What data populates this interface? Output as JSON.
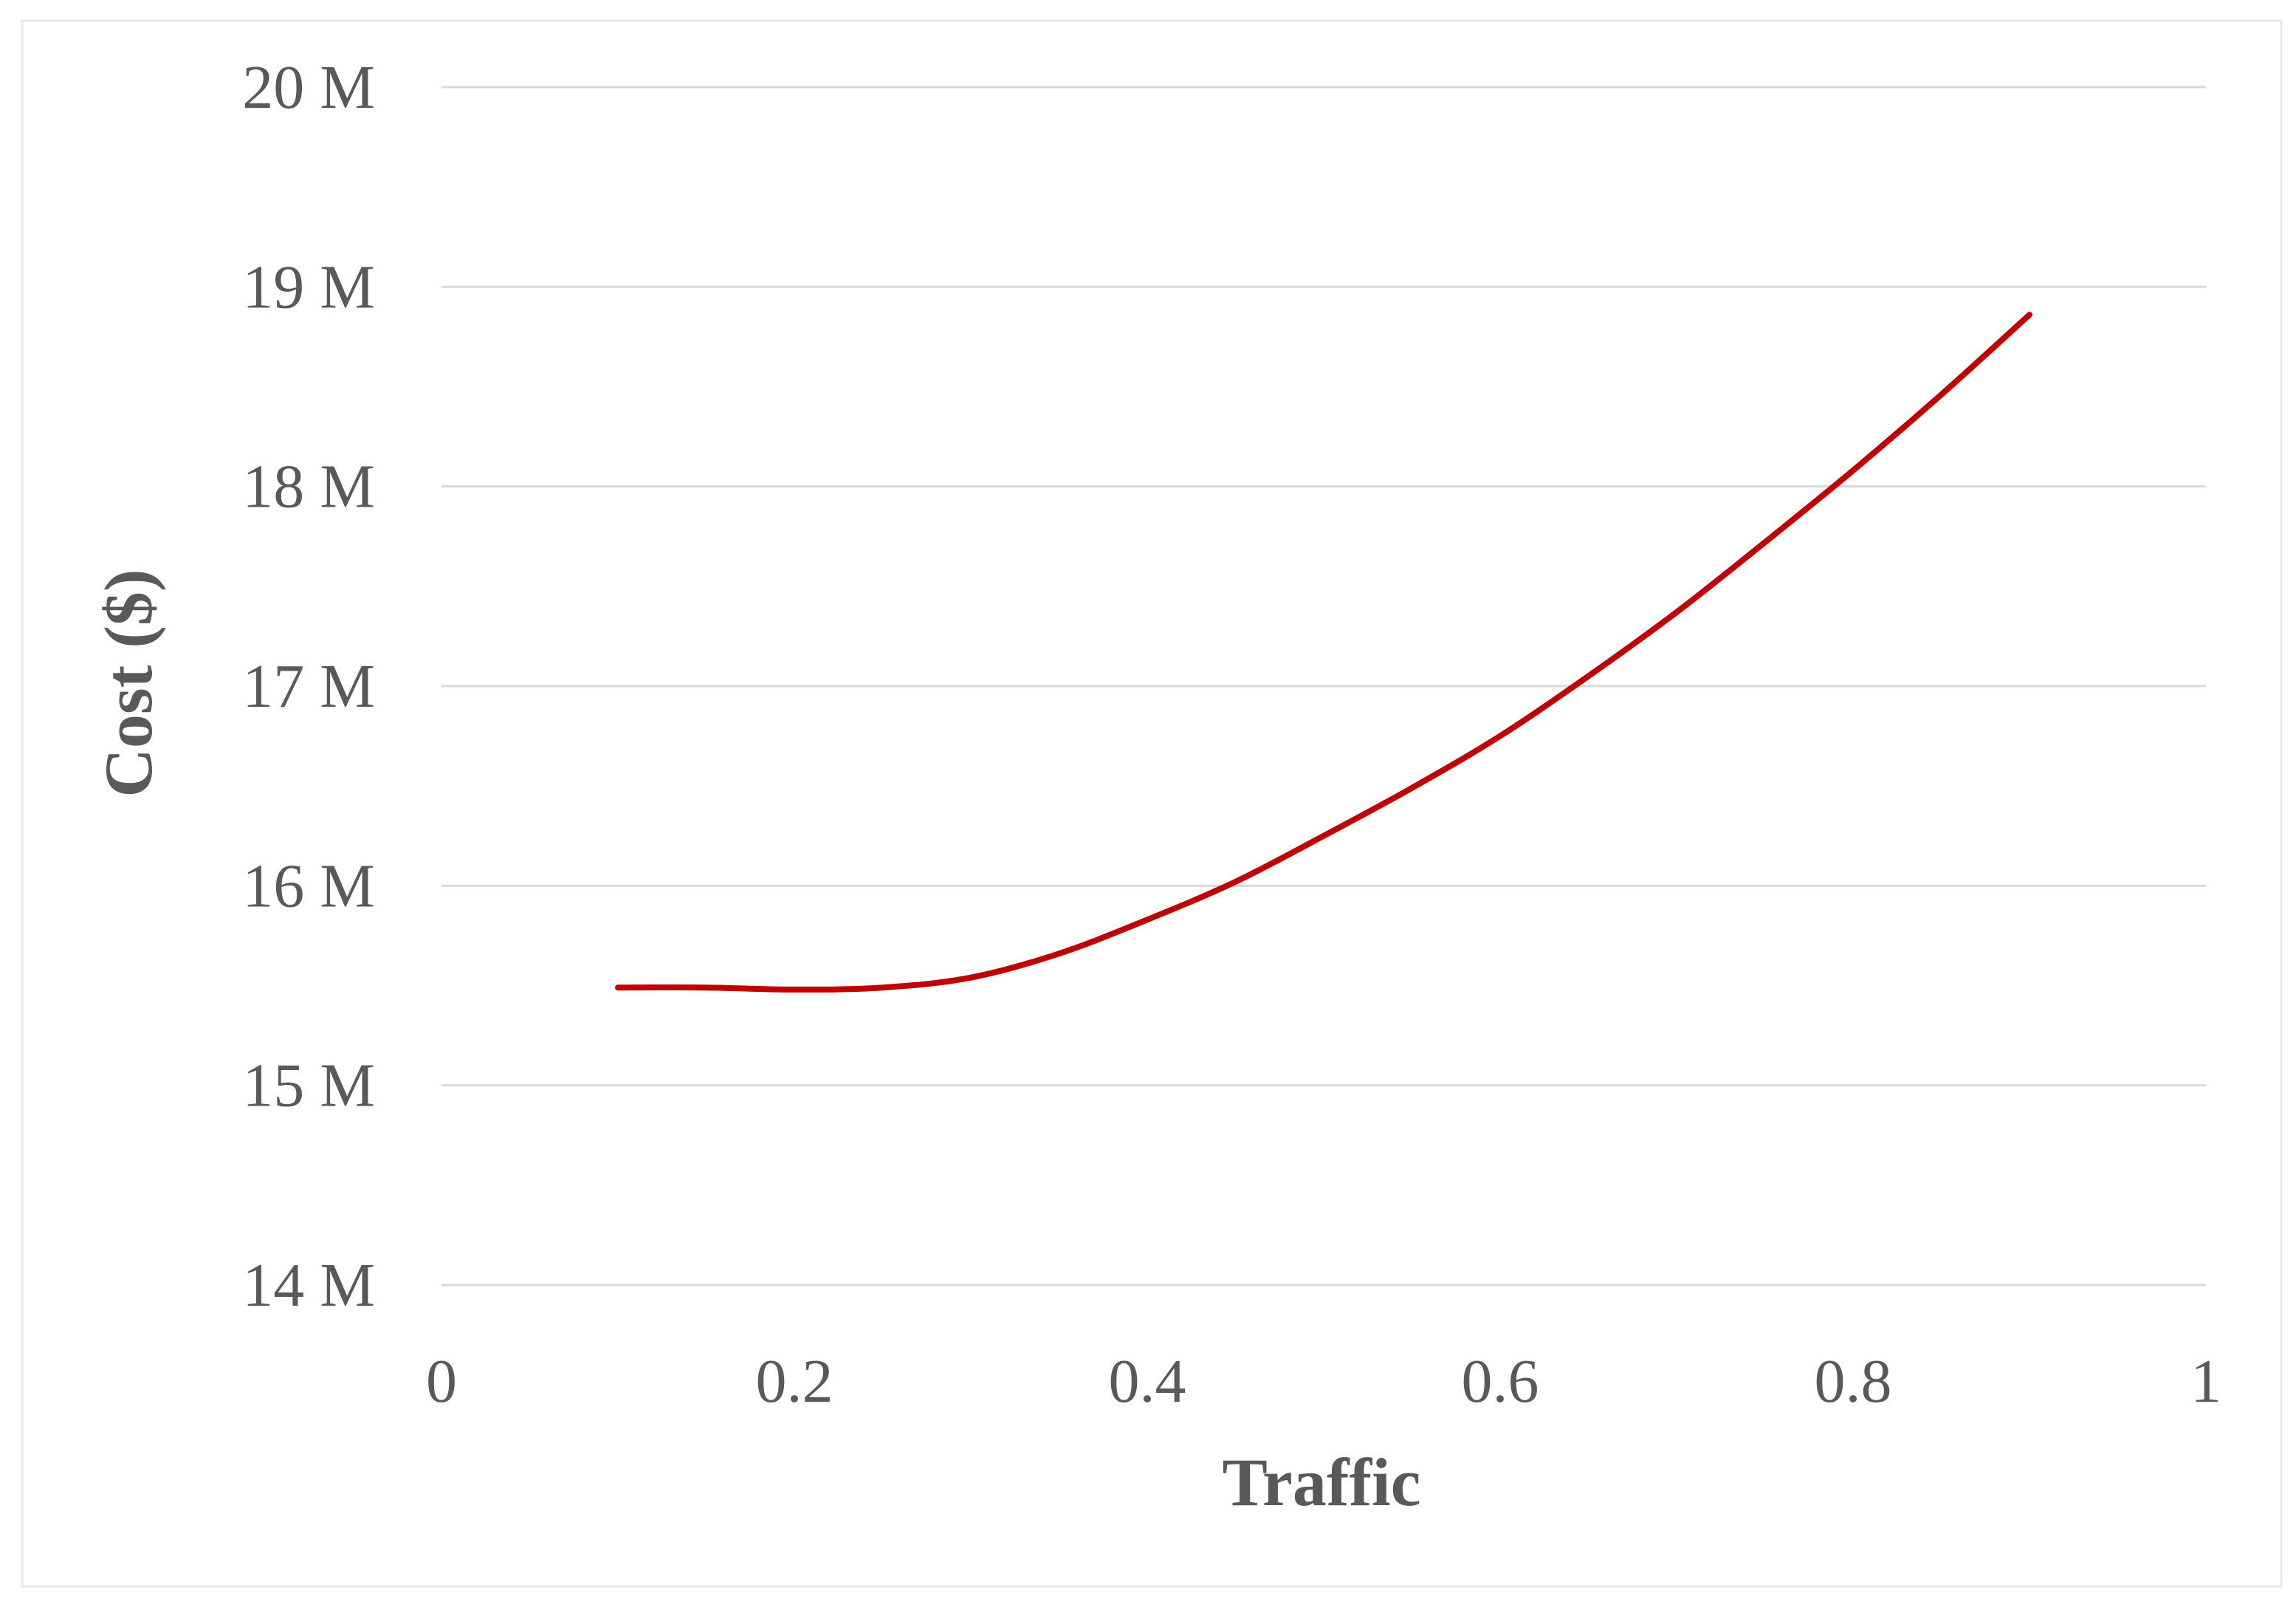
{
  "chart_data": {
    "type": "line",
    "title": "",
    "xlabel": "Traffic",
    "ylabel": "Cost ($)",
    "xlim": [
      0,
      1
    ],
    "ylim": [
      14000000,
      20000000
    ],
    "x_ticks": [
      0,
      0.2,
      0.4,
      0.6,
      0.8,
      1
    ],
    "x_tick_labels": [
      "0",
      "0.2",
      "0.4",
      "0.6",
      "0.8",
      "1"
    ],
    "y_ticks": [
      14000000,
      15000000,
      16000000,
      17000000,
      18000000,
      19000000,
      20000000
    ],
    "y_tick_labels": [
      "14 M",
      "15 M",
      "16 M",
      "17 M",
      "18 M",
      "19 M",
      "20 M"
    ],
    "grid": "horizontal",
    "legend": "none",
    "series": [
      {
        "color": "#c00000",
        "x": [
          0.1,
          0.15,
          0.2,
          0.25,
          0.3,
          0.35,
          0.4,
          0.45,
          0.5,
          0.55,
          0.6,
          0.65,
          0.7,
          0.75,
          0.8,
          0.85,
          0.9
        ],
        "y": [
          15490000,
          15490000,
          15480000,
          15490000,
          15540000,
          15660000,
          15830000,
          16020000,
          16250000,
          16490000,
          16750000,
          17050000,
          17370000,
          17720000,
          18080000,
          18460000,
          18860000
        ]
      }
    ]
  }
}
